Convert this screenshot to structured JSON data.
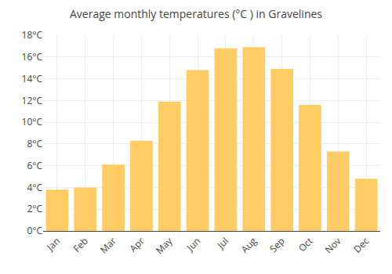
{
  "chart_data": {
    "type": "bar",
    "title": "Average monthly temperatures (°C ) in Gravelines",
    "categories": [
      "Jan",
      "Feb",
      "Mar",
      "Apr",
      "May",
      "Jun",
      "Jul",
      "Aug",
      "Sep",
      "Oct",
      "Nov",
      "Dec"
    ],
    "values": [
      3.8,
      4.0,
      6.1,
      8.3,
      11.9,
      14.8,
      16.8,
      16.9,
      14.9,
      11.6,
      7.3,
      4.8
    ],
    "color": "#FFCC66",
    "ylim": [
      0,
      18
    ],
    "yticks": [
      {
        "value": 0,
        "label": "0°C"
      },
      {
        "value": 2,
        "label": "2°C"
      },
      {
        "value": 4,
        "label": "4°C"
      },
      {
        "value": 6,
        "label": "6°C"
      },
      {
        "value": 8,
        "label": "8°C"
      },
      {
        "value": 10,
        "label": "10°C"
      },
      {
        "value": 12,
        "label": "12°C"
      },
      {
        "value": 14,
        "label": "14°C"
      },
      {
        "value": 16,
        "label": "16°C"
      },
      {
        "value": 18,
        "label": "18°C"
      }
    ],
    "grid": true
  }
}
